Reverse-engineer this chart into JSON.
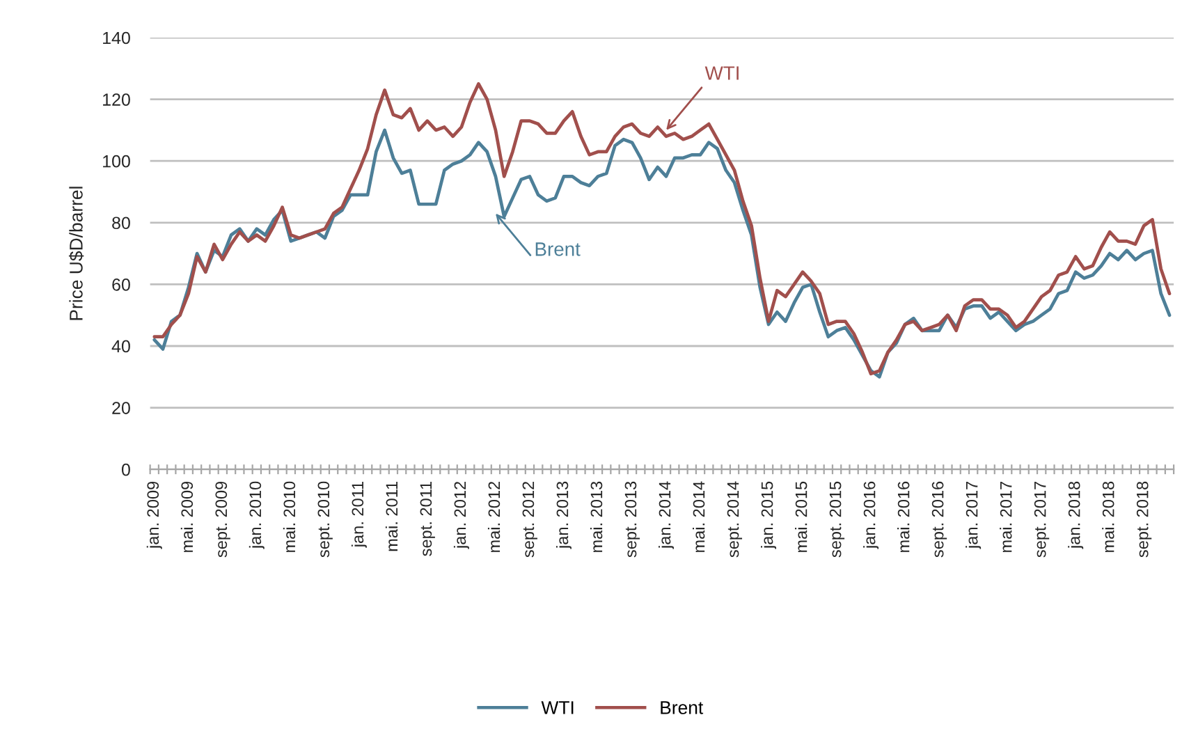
{
  "chart_data": {
    "type": "line",
    "ylabel": "Price U$D/barrel",
    "categories": [
      "jan. 2009",
      null,
      null,
      null,
      "mai. 2009",
      null,
      null,
      null,
      "sept. 2009",
      null,
      null,
      null,
      "jan. 2010",
      null,
      null,
      null,
      "mai. 2010",
      null,
      null,
      null,
      "sept. 2010",
      null,
      null,
      null,
      "jan. 2011",
      null,
      null,
      null,
      "mai. 2011",
      null,
      null,
      null,
      "sept. 2011",
      null,
      null,
      null,
      "jan. 2012",
      null,
      null,
      null,
      "mai. 2012",
      null,
      null,
      null,
      "sept. 2012",
      null,
      null,
      null,
      "jan. 2013",
      null,
      null,
      null,
      "mai. 2013",
      null,
      null,
      null,
      "sept. 2013",
      null,
      null,
      null,
      "jan. 2014",
      null,
      null,
      null,
      "mai. 2014",
      null,
      null,
      null,
      "sept. 2014",
      null,
      null,
      null,
      "jan. 2015",
      null,
      null,
      null,
      "mai. 2015",
      null,
      null,
      null,
      "sept. 2015",
      null,
      null,
      null,
      "jan. 2016",
      null,
      null,
      null,
      "mai. 2016",
      null,
      null,
      null,
      "sept. 2016",
      null,
      null,
      null,
      "jan. 2017",
      null,
      null,
      null,
      "mai. 2017",
      null,
      null,
      null,
      "sept. 2017",
      null,
      null,
      null,
      "jan. 2018",
      null,
      null,
      null,
      "mai. 2018",
      null,
      null,
      null,
      "sept. 2018",
      null,
      null,
      null
    ],
    "series": [
      {
        "name": "WTI",
        "color": "#4d7f98",
        "values": [
          42,
          39,
          48,
          50,
          59,
          70,
          64,
          71,
          69,
          76,
          78,
          74,
          78,
          76,
          81,
          84,
          74,
          75,
          76,
          77,
          75,
          82,
          84,
          89,
          89,
          89,
          103,
          110,
          101,
          96,
          97,
          86,
          86,
          86,
          97,
          99,
          100,
          102,
          106,
          103,
          95,
          82,
          88,
          94,
          95,
          89,
          87,
          88,
          95,
          95,
          93,
          92,
          95,
          96,
          105,
          107,
          106,
          101,
          94,
          98,
          95,
          101,
          101,
          102,
          102,
          106,
          104,
          97,
          93,
          84,
          76,
          59,
          47,
          51,
          48,
          54,
          59,
          60,
          51,
          43,
          45,
          46,
          42,
          37,
          32,
          30,
          38,
          41,
          47,
          49,
          45,
          45,
          45,
          50,
          46,
          52,
          53,
          53,
          49,
          51,
          48,
          45,
          47,
          48,
          50,
          52,
          57,
          58,
          64,
          62,
          63,
          66,
          70,
          68,
          71,
          68,
          70,
          71,
          57,
          50
        ]
      },
      {
        "name": "Brent",
        "color": "#a14f4c",
        "values": [
          43,
          43,
          47,
          50,
          57,
          69,
          64,
          73,
          68,
          73,
          77,
          74,
          76,
          74,
          79,
          85,
          76,
          75,
          76,
          77,
          78,
          83,
          85,
          91,
          97,
          104,
          115,
          123,
          115,
          114,
          117,
          110,
          113,
          110,
          111,
          108,
          111,
          119,
          125,
          120,
          110,
          95,
          103,
          113,
          113,
          112,
          109,
          109,
          113,
          116,
          108,
          102,
          103,
          103,
          108,
          111,
          112,
          109,
          108,
          111,
          108,
          109,
          107,
          108,
          110,
          112,
          107,
          102,
          97,
          87,
          79,
          62,
          48,
          58,
          56,
          60,
          64,
          61,
          57,
          47,
          48,
          48,
          44,
          38,
          31,
          32,
          38,
          42,
          47,
          48,
          45,
          46,
          47,
          50,
          45,
          53,
          55,
          55,
          52,
          52,
          50,
          46,
          48,
          52,
          56,
          58,
          63,
          64,
          69,
          65,
          66,
          72,
          77,
          74,
          74,
          73,
          79,
          81,
          65,
          57
        ]
      }
    ],
    "ylim": [
      0,
      140
    ],
    "yticks": [
      0,
      20,
      40,
      60,
      80,
      100,
      120,
      140
    ],
    "grid": "y",
    "legend": "bottom",
    "marker": "none",
    "line_style": "solid",
    "annotations": [
      {
        "text": "WTI",
        "x": "jan. 2014",
        "y": 110
      },
      {
        "text": "Brent",
        "x": "mai. 2012",
        "y": 83
      }
    ]
  }
}
